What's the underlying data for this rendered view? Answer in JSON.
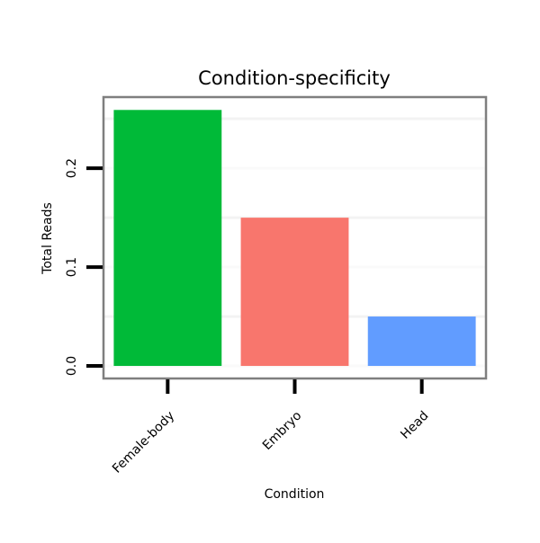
{
  "chart_data": {
    "type": "bar",
    "title": "Condition-specificity",
    "xlabel": "Condition",
    "ylabel": "Total Reads",
    "categories": [
      "Female-body",
      "Embryo",
      "Head"
    ],
    "values": [
      0.259,
      0.15,
      0.05
    ],
    "colors": [
      "#00BA38",
      "#F8766D",
      "#619CFF"
    ],
    "ylim": [
      -0.0127,
      0.272
    ],
    "yticks": [
      0.0,
      0.1,
      0.2
    ],
    "ytick_labels": [
      "0.0",
      "0.1",
      "0.2"
    ],
    "minor_gridlines": [
      0.05,
      0.15,
      0.25
    ],
    "grid": true,
    "legend": "none"
  }
}
